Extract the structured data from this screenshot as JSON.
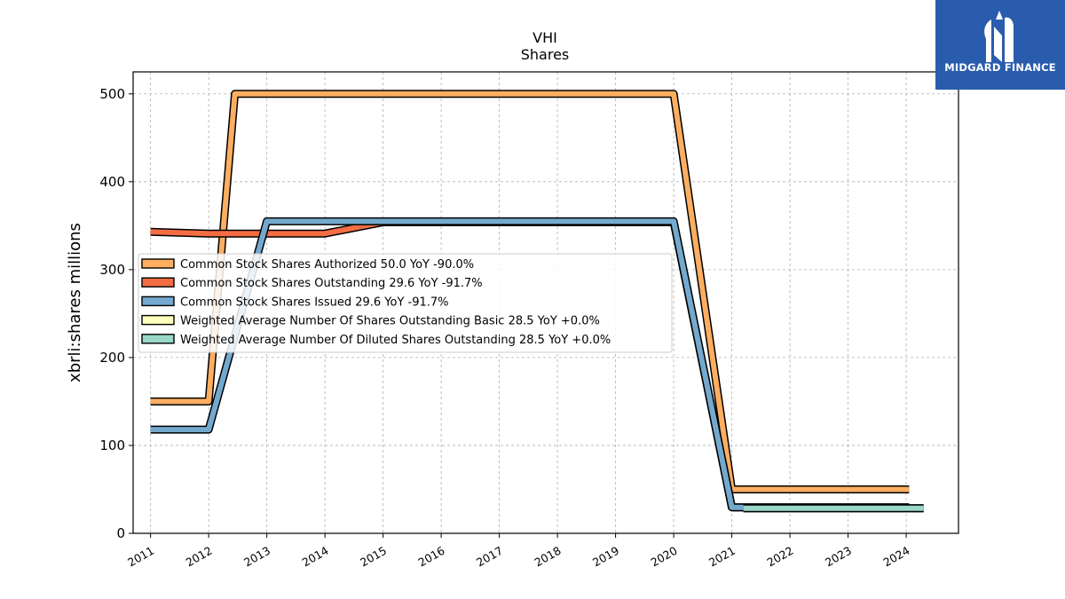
{
  "logo": {
    "text": "MIDGARD FINANCE",
    "icon": "midgard-m-logo-icon",
    "bg_color": "#2a5cad"
  },
  "chart_data": {
    "type": "line",
    "title": "VHI",
    "subtitle": "Shares",
    "ylabel": "xbrli:shares millions",
    "xlabel": "",
    "xlim": [
      2010.7,
      2024.9
    ],
    "ylim": [
      0,
      525
    ],
    "yticks": [
      0,
      100,
      200,
      300,
      400,
      500
    ],
    "xticks": [
      "2011",
      "2012",
      "2013",
      "2014",
      "2015",
      "2016",
      "2017",
      "2018",
      "2019",
      "2020",
      "2021",
      "2022",
      "2023",
      "2024"
    ],
    "grid": true,
    "legend_position": "center-left",
    "series": [
      {
        "name": "Common Stock Shares Authorized  50.0 YoY -90.0%",
        "color": "#fdae61",
        "points": [
          [
            2011,
            150
          ],
          [
            2012,
            150
          ],
          [
            2012.45,
            500
          ],
          [
            2020,
            500
          ],
          [
            2021,
            50
          ],
          [
            2024.05,
            50
          ]
        ]
      },
      {
        "name": "Common Stock Shares Outstanding  29.6 YoY -91.7%",
        "color": "#f46d43",
        "points": [
          [
            2011,
            343
          ],
          [
            2012,
            341
          ],
          [
            2014,
            341
          ],
          [
            2015,
            354
          ],
          [
            2020,
            354
          ],
          [
            2021,
            29.6
          ],
          [
            2024.05,
            29.6
          ]
        ]
      },
      {
        "name": "Common Stock Shares Issued  29.6 YoY -91.7%",
        "color": "#74a9cf",
        "points": [
          [
            2011,
            118
          ],
          [
            2012,
            118
          ],
          [
            2013,
            355
          ],
          [
            2020,
            355
          ],
          [
            2021,
            29.6
          ],
          [
            2024.05,
            29.6
          ]
        ]
      },
      {
        "name": "Weighted Average Number Of Shares Outstanding Basic  28.5 YoY +0.0%",
        "color": "#ffffbf",
        "points": [
          [
            2021.2,
            28.5
          ],
          [
            2024.3,
            28.5
          ]
        ]
      },
      {
        "name": "Weighted Average Number Of Diluted Shares Outstanding  28.5 YoY +0.0%",
        "color": "#99d8c9",
        "points": [
          [
            2021.2,
            28.5
          ],
          [
            2024.3,
            28.5
          ]
        ]
      }
    ]
  }
}
